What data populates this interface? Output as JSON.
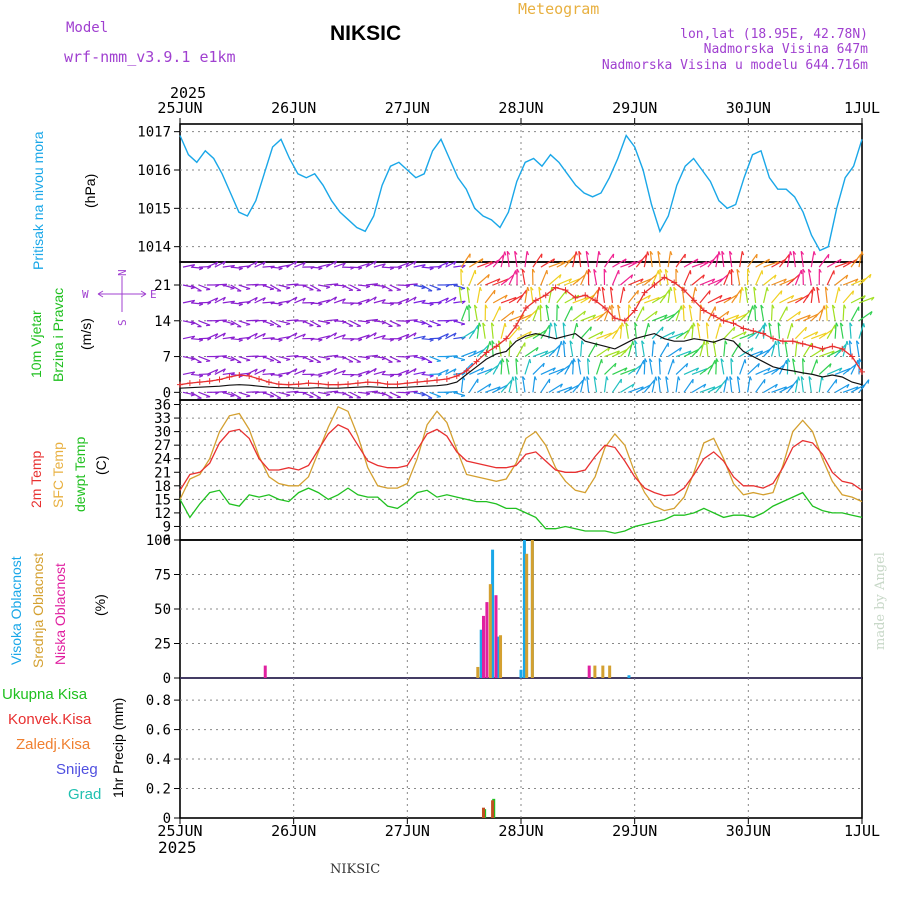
{
  "header": {
    "model_label": "Model",
    "model_name": "wrf-nmm_v3.9.1 e1km",
    "station": "NIKSIC",
    "product": "Meteogram",
    "lonlat": "lon,lat (18.95E, 42.78N)",
    "elevation": "Nadmorska Visina 647m",
    "model_elevation": "Nadmorska Visina u modelu 644.716m",
    "top_year": "2025",
    "bottom_year": "2025",
    "footer_station": "NIKSIC",
    "credit": "made by Angel"
  },
  "colors": {
    "purple": "#a040d0",
    "orange": "#e8b040",
    "blue": "#1aa7e8",
    "red": "#e83030",
    "green": "#20c020",
    "tan": "#d4a030",
    "magenta": "#e020a0"
  },
  "chart_data": [
    {
      "type": "line",
      "panel": "pressure",
      "x_ticks": [
        "25JUN",
        "26JUN",
        "27JUN",
        "28JUN",
        "29JUN",
        "30JUN",
        "1JUL"
      ],
      "ylabel_lines": [
        "Pritisak na nivou mora",
        "(hPa)"
      ],
      "yticks": [
        "1014",
        "1015",
        "1016",
        "1017"
      ],
      "ylim": [
        1013.6,
        1017.2
      ],
      "series": [
        {
          "values": [
            1016.9,
            1016.4,
            1016.2,
            1016.5,
            1016.3,
            1015.9,
            1015.4,
            1014.9,
            1014.8,
            1015.2,
            1015.9,
            1016.6,
            1016.8,
            1016.3,
            1015.9,
            1015.8,
            1015.9,
            1015.6,
            1015.2,
            1014.9,
            1014.7,
            1014.5,
            1014.4,
            1014.8,
            1015.6,
            1016.1,
            1016.2,
            1016.0,
            1015.8,
            1015.9,
            1016.5,
            1016.8,
            1016.3,
            1015.8,
            1015.5,
            1015.0,
            1014.8,
            1014.7,
            1014.5,
            1014.9,
            1015.7,
            1016.2,
            1016.3,
            1016.1,
            1016.4,
            1016.2,
            1015.9,
            1015.6,
            1015.4,
            1015.3,
            1015.4,
            1015.8,
            1016.3,
            1016.9,
            1016.6,
            1016.0,
            1015.1,
            1014.4,
            1014.8,
            1015.6,
            1016.1,
            1016.3,
            1016.0,
            1015.7,
            1015.2,
            1015.0,
            1015.1,
            1015.8,
            1016.4,
            1016.5,
            1015.8,
            1015.5,
            1015.5,
            1015.3,
            1014.9,
            1014.3,
            1013.9,
            1014.0,
            1015.0,
            1015.8,
            1016.1,
            1016.8
          ]
        }
      ]
    },
    {
      "type": "line",
      "panel": "wind",
      "ylabel_lines": [
        "10m Vjetar",
        "Brzina i Pravac",
        "(m/s)"
      ],
      "compass": [
        "N",
        "W",
        "E",
        "S"
      ],
      "yticks": [
        "0",
        "7",
        "14",
        "21"
      ],
      "ylim": [
        -1.5,
        25.5
      ],
      "series": [
        {
          "values": [
            1.5,
            1.8,
            2.0,
            2.2,
            2.5,
            3.0,
            3.4,
            3.2,
            2.6,
            2.0,
            1.6,
            1.5,
            1.6,
            1.8,
            1.7,
            1.5,
            1.5,
            1.6,
            1.8,
            2.0,
            1.9,
            1.6,
            1.6,
            1.8,
            2.0,
            2.2,
            2.4,
            2.6,
            3.2,
            4.2,
            6.0,
            7.8,
            9.0,
            10.5,
            13.0,
            16.5,
            18.0,
            19.0,
            20.5,
            20.0,
            18.5,
            19.0,
            18.0,
            16.5,
            14.5,
            14.0,
            16.0,
            19.5,
            21.0,
            22.5,
            21.5,
            20.0,
            18.0,
            16.0,
            15.0,
            14.0,
            13.5,
            12.5,
            12.0,
            11.5,
            10.5,
            10.0,
            10.0,
            9.5,
            9.0,
            8.5,
            9.0,
            8.5,
            7.0,
            4.0
          ]
        },
        {
          "values": [
            0.8,
            0.9,
            1.0,
            1.1,
            1.2,
            1.4,
            1.5,
            1.4,
            1.2,
            1.0,
            0.9,
            0.9,
            0.8,
            0.8,
            0.9,
            0.8,
            0.8,
            0.9,
            1.0,
            1.1,
            1.0,
            0.9,
            0.9,
            1.0,
            1.1,
            1.2,
            1.3,
            1.5,
            2.0,
            3.5,
            5.0,
            6.5,
            7.5,
            8.0,
            10.0,
            11.0,
            11.5,
            11.0,
            10.5,
            11.0,
            11.5,
            10.0,
            9.5,
            9.0,
            8.5,
            9.5,
            10.5,
            11.0,
            11.5,
            10.5,
            10.0,
            10.0,
            10.5,
            10.2,
            9.8,
            10.5,
            10.0,
            8.0,
            7.0,
            6.0,
            5.0,
            4.5,
            4.2,
            3.8,
            3.5,
            3.0,
            3.4,
            3.0,
            2.0,
            1.5
          ]
        }
      ]
    },
    {
      "type": "line",
      "panel": "temperature",
      "ylabel_lines": [
        "2m Temp",
        "SFC Temp",
        "dewpt Temp",
        "(C)"
      ],
      "yticks": [
        "6",
        "9",
        "12",
        "15",
        "18",
        "21",
        "24",
        "27",
        "30",
        "33",
        "36"
      ],
      "ylim": [
        6,
        37
      ],
      "series": [
        {
          "name": "2m Temp",
          "values": [
            17.0,
            20.5,
            21.0,
            23.0,
            27.5,
            30.0,
            30.5,
            28.5,
            24.0,
            21.5,
            21.5,
            22.0,
            21.5,
            22.5,
            26.0,
            29.5,
            31.5,
            30.5,
            27.0,
            23.5,
            22.5,
            22.0,
            22.0,
            22.5,
            26.0,
            29.5,
            30.5,
            29.0,
            25.5,
            23.5,
            23.0,
            22.5,
            22.0,
            22.0,
            22.5,
            25.0,
            25.5,
            23.5,
            21.5,
            21.0,
            21.0,
            21.5,
            24.5,
            27.0,
            26.5,
            23.5,
            20.0,
            17.5,
            16.5,
            15.8,
            16.0,
            17.5,
            20.5,
            24.0,
            25.5,
            23.5,
            20.0,
            18.0,
            18.0,
            17.5,
            18.5,
            22.0,
            26.5,
            28.0,
            27.5,
            25.0,
            21.0,
            19.0,
            18.5,
            17.0
          ]
        },
        {
          "name": "SFC Temp",
          "values": [
            15.0,
            19.5,
            20.5,
            24.0,
            30.0,
            33.5,
            34.0,
            30.5,
            24.5,
            20.0,
            18.5,
            18.0,
            18.0,
            20.0,
            25.5,
            31.0,
            35.5,
            34.5,
            29.0,
            22.0,
            18.0,
            17.5,
            17.5,
            18.5,
            24.0,
            31.5,
            34.5,
            32.0,
            26.0,
            20.5,
            20.0,
            19.5,
            19.0,
            19.5,
            23.0,
            28.5,
            30.0,
            27.0,
            22.0,
            19.0,
            17.0,
            16.5,
            20.0,
            26.5,
            29.5,
            27.0,
            21.0,
            16.5,
            13.5,
            12.5,
            13.0,
            15.5,
            21.0,
            27.5,
            28.5,
            24.0,
            18.5,
            16.0,
            16.5,
            16.0,
            16.5,
            22.5,
            30.0,
            32.5,
            30.0,
            24.0,
            19.0,
            16.0,
            15.5,
            14.5
          ]
        },
        {
          "name": "dewpt Temp",
          "values": [
            15.0,
            11.0,
            14.0,
            16.5,
            17.0,
            14.0,
            13.5,
            16.0,
            15.5,
            16.0,
            15.0,
            14.5,
            16.5,
            17.5,
            16.5,
            15.0,
            16.0,
            17.5,
            16.0,
            15.5,
            15.5,
            13.5,
            13.0,
            14.5,
            16.5,
            17.0,
            15.5,
            16.0,
            15.5,
            15.0,
            14.5,
            14.5,
            14.0,
            13.0,
            13.0,
            12.0,
            11.0,
            8.5,
            8.5,
            9.0,
            8.5,
            8.0,
            8.0,
            8.0,
            7.5,
            8.0,
            9.0,
            9.5,
            10.0,
            10.5,
            11.5,
            11.5,
            12.0,
            13.0,
            12.0,
            11.0,
            11.5,
            11.5,
            11.0,
            12.0,
            13.5,
            14.5,
            15.5,
            16.5,
            13.5,
            12.5,
            12.0,
            12.0,
            11.5,
            11.0
          ]
        }
      ]
    },
    {
      "type": "bar",
      "panel": "cloud",
      "ylabel_lines": [
        "Visoka Oblacnost",
        "Srednja Oblacnost",
        "Niska Oblacnost",
        "(%)"
      ],
      "yticks": [
        "0",
        "25",
        "50",
        "75",
        "100"
      ],
      "ylim": [
        0,
        100
      ],
      "series": [
        {
          "name": "Visoka Oblacnost",
          "points": [
            [
              2.65,
              35
            ],
            [
              2.75,
              93
            ],
            [
              2.8,
              30
            ],
            [
              3.0,
              6
            ],
            [
              3.03,
              100
            ],
            [
              3.1,
              100
            ],
            [
              3.95,
              2
            ]
          ]
        },
        {
          "name": "Srednja Oblacnost",
          "points": [
            [
              2.62,
              8
            ],
            [
              2.73,
              68
            ],
            [
              2.82,
              31
            ],
            [
              3.05,
              90
            ],
            [
              3.1,
              100
            ],
            [
              3.65,
              9
            ],
            [
              3.72,
              9
            ],
            [
              3.78,
              9
            ]
          ]
        },
        {
          "name": "Niska Oblacnost",
          "points": [
            [
              0.75,
              9
            ],
            [
              2.67,
              45
            ],
            [
              2.7,
              55
            ],
            [
              2.78,
              60
            ],
            [
              3.6,
              9
            ]
          ]
        }
      ]
    },
    {
      "type": "bar",
      "panel": "precipitation",
      "legend": [
        "Ukupna Kisa",
        "Konvek.Kisa",
        "Zaledj.Kisa",
        "Snijeg",
        "Grad"
      ],
      "ylabel": "1hr Precip (mm)",
      "yticks": [
        "0",
        "0.2",
        "0.4",
        "0.6",
        "0.8"
      ],
      "ylim": [
        0,
        0.95
      ],
      "series": [
        {
          "name": "Ukupna Kisa",
          "points": [
            [
              2.68,
              0.06
            ],
            [
              2.76,
              0.13
            ]
          ]
        },
        {
          "name": "Konvek.Kisa",
          "points": [
            [
              2.67,
              0.07
            ],
            [
              2.75,
              0.12
            ]
          ]
        }
      ]
    }
  ]
}
